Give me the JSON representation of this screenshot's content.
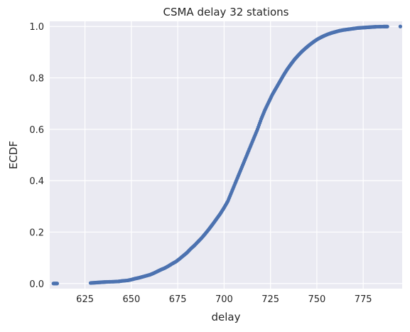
{
  "chart_data": {
    "type": "scatter",
    "title": "CSMA delay 32 stations",
    "xlabel": "delay",
    "ylabel": "ECDF",
    "xlim": [
      606,
      796
    ],
    "ylim": [
      -0.02,
      1.02
    ],
    "xticks": [
      625,
      650,
      675,
      700,
      725,
      750,
      775
    ],
    "yticks": [
      0.0,
      0.2,
      0.4,
      0.6,
      0.8,
      1.0
    ],
    "grid": true,
    "legend": "none",
    "series": [
      {
        "color": "#4c72b0",
        "x": [
          608,
          610,
          628,
          630,
          632,
          634,
          636,
          640,
          643,
          645,
          648,
          650,
          652,
          654,
          656,
          658,
          660,
          662,
          664,
          666,
          668,
          670,
          672,
          674,
          676,
          678,
          680,
          682,
          684,
          686,
          688,
          690,
          692,
          694,
          696,
          698,
          700,
          702,
          704,
          706,
          708,
          710,
          712,
          714,
          716,
          718,
          720,
          722,
          724,
          726,
          728,
          730,
          732,
          734,
          736,
          738,
          740,
          742,
          744,
          746,
          748,
          750,
          752,
          754,
          756,
          758,
          760,
          762,
          764,
          766,
          768,
          770,
          772,
          774,
          776,
          778,
          780,
          782,
          786,
          788,
          795
        ],
        "y": [
          0.0,
          0.0,
          0.002,
          0.003,
          0.004,
          0.005,
          0.006,
          0.007,
          0.008,
          0.01,
          0.012,
          0.015,
          0.019,
          0.022,
          0.026,
          0.03,
          0.034,
          0.04,
          0.047,
          0.054,
          0.06,
          0.068,
          0.077,
          0.085,
          0.096,
          0.108,
          0.12,
          0.135,
          0.148,
          0.163,
          0.178,
          0.195,
          0.213,
          0.232,
          0.252,
          0.272,
          0.295,
          0.32,
          0.355,
          0.39,
          0.425,
          0.46,
          0.495,
          0.53,
          0.565,
          0.6,
          0.64,
          0.675,
          0.705,
          0.735,
          0.76,
          0.785,
          0.81,
          0.833,
          0.853,
          0.872,
          0.888,
          0.903,
          0.916,
          0.928,
          0.939,
          0.949,
          0.957,
          0.964,
          0.97,
          0.975,
          0.979,
          0.983,
          0.986,
          0.988,
          0.99,
          0.992,
          0.994,
          0.995,
          0.996,
          0.997,
          0.998,
          0.999,
          0.9995,
          0.9997,
          1.0
        ]
      }
    ]
  }
}
